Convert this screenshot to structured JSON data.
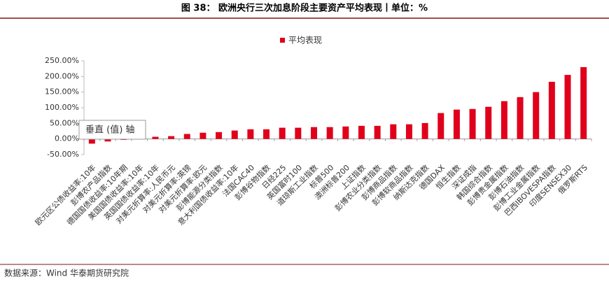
{
  "chart_data": {
    "type": "bar",
    "title": "图 38：  欧洲央行三次加息阶段主要资产平均表现丨单位：%",
    "source": "数据来源：Wind  华泰期货研究院",
    "annotation": "垂直 (值) 轴",
    "categories": [
      "欧元区公债收益率:10年",
      "彭博农产品指数",
      "德国国债收益率:10年期",
      "美国国债收益率:10年",
      "英国国债收益率:10年",
      "对美元折算率:人民币元",
      "对美元折算率:英镑",
      "对美元折算率:欧元",
      "彭博能源分类指数",
      "意大利国债收益率:10年",
      "法国CAC40",
      "彭博谷物指数",
      "日经225",
      "英国富时100",
      "道琼斯工业指数",
      "标普500",
      "澳洲标普200",
      "上证指数",
      "彭博农业分类指数",
      "彭博商品指数",
      "彭博软商品指数",
      "纳斯达克指数",
      "德国DAX",
      "恒生指数",
      "深证成指",
      "韩国综合指数",
      "彭博贵金属指数",
      "彭博石油指数",
      "彭博工业金属指数",
      "巴西IBOVESPA指数",
      "印度SENSEX30",
      "俄罗斯RTS"
    ],
    "series": [
      {
        "name": "平均表现",
        "color": "#e0001b",
        "values": [
          -15,
          -8,
          -3,
          2,
          7,
          9,
          16,
          20,
          22,
          27,
          31,
          31,
          36,
          36,
          38,
          38,
          40,
          42,
          42,
          47,
          47,
          51,
          83,
          94,
          96,
          103,
          121,
          134,
          150,
          183,
          205,
          230
        ]
      }
    ],
    "ylim": [
      -50,
      250
    ],
    "yticks": [
      {
        "value": -50,
        "label": "-50.00%"
      },
      {
        "value": 0,
        "label": "0.00%"
      },
      {
        "value": 50,
        "label": "50.00%"
      },
      {
        "value": 100,
        "label": "100.00%"
      },
      {
        "value": 150,
        "label": "150.00%"
      },
      {
        "value": 200,
        "label": "200.00%"
      },
      {
        "value": 250,
        "label": "250.00%"
      }
    ],
    "legend": "top"
  }
}
